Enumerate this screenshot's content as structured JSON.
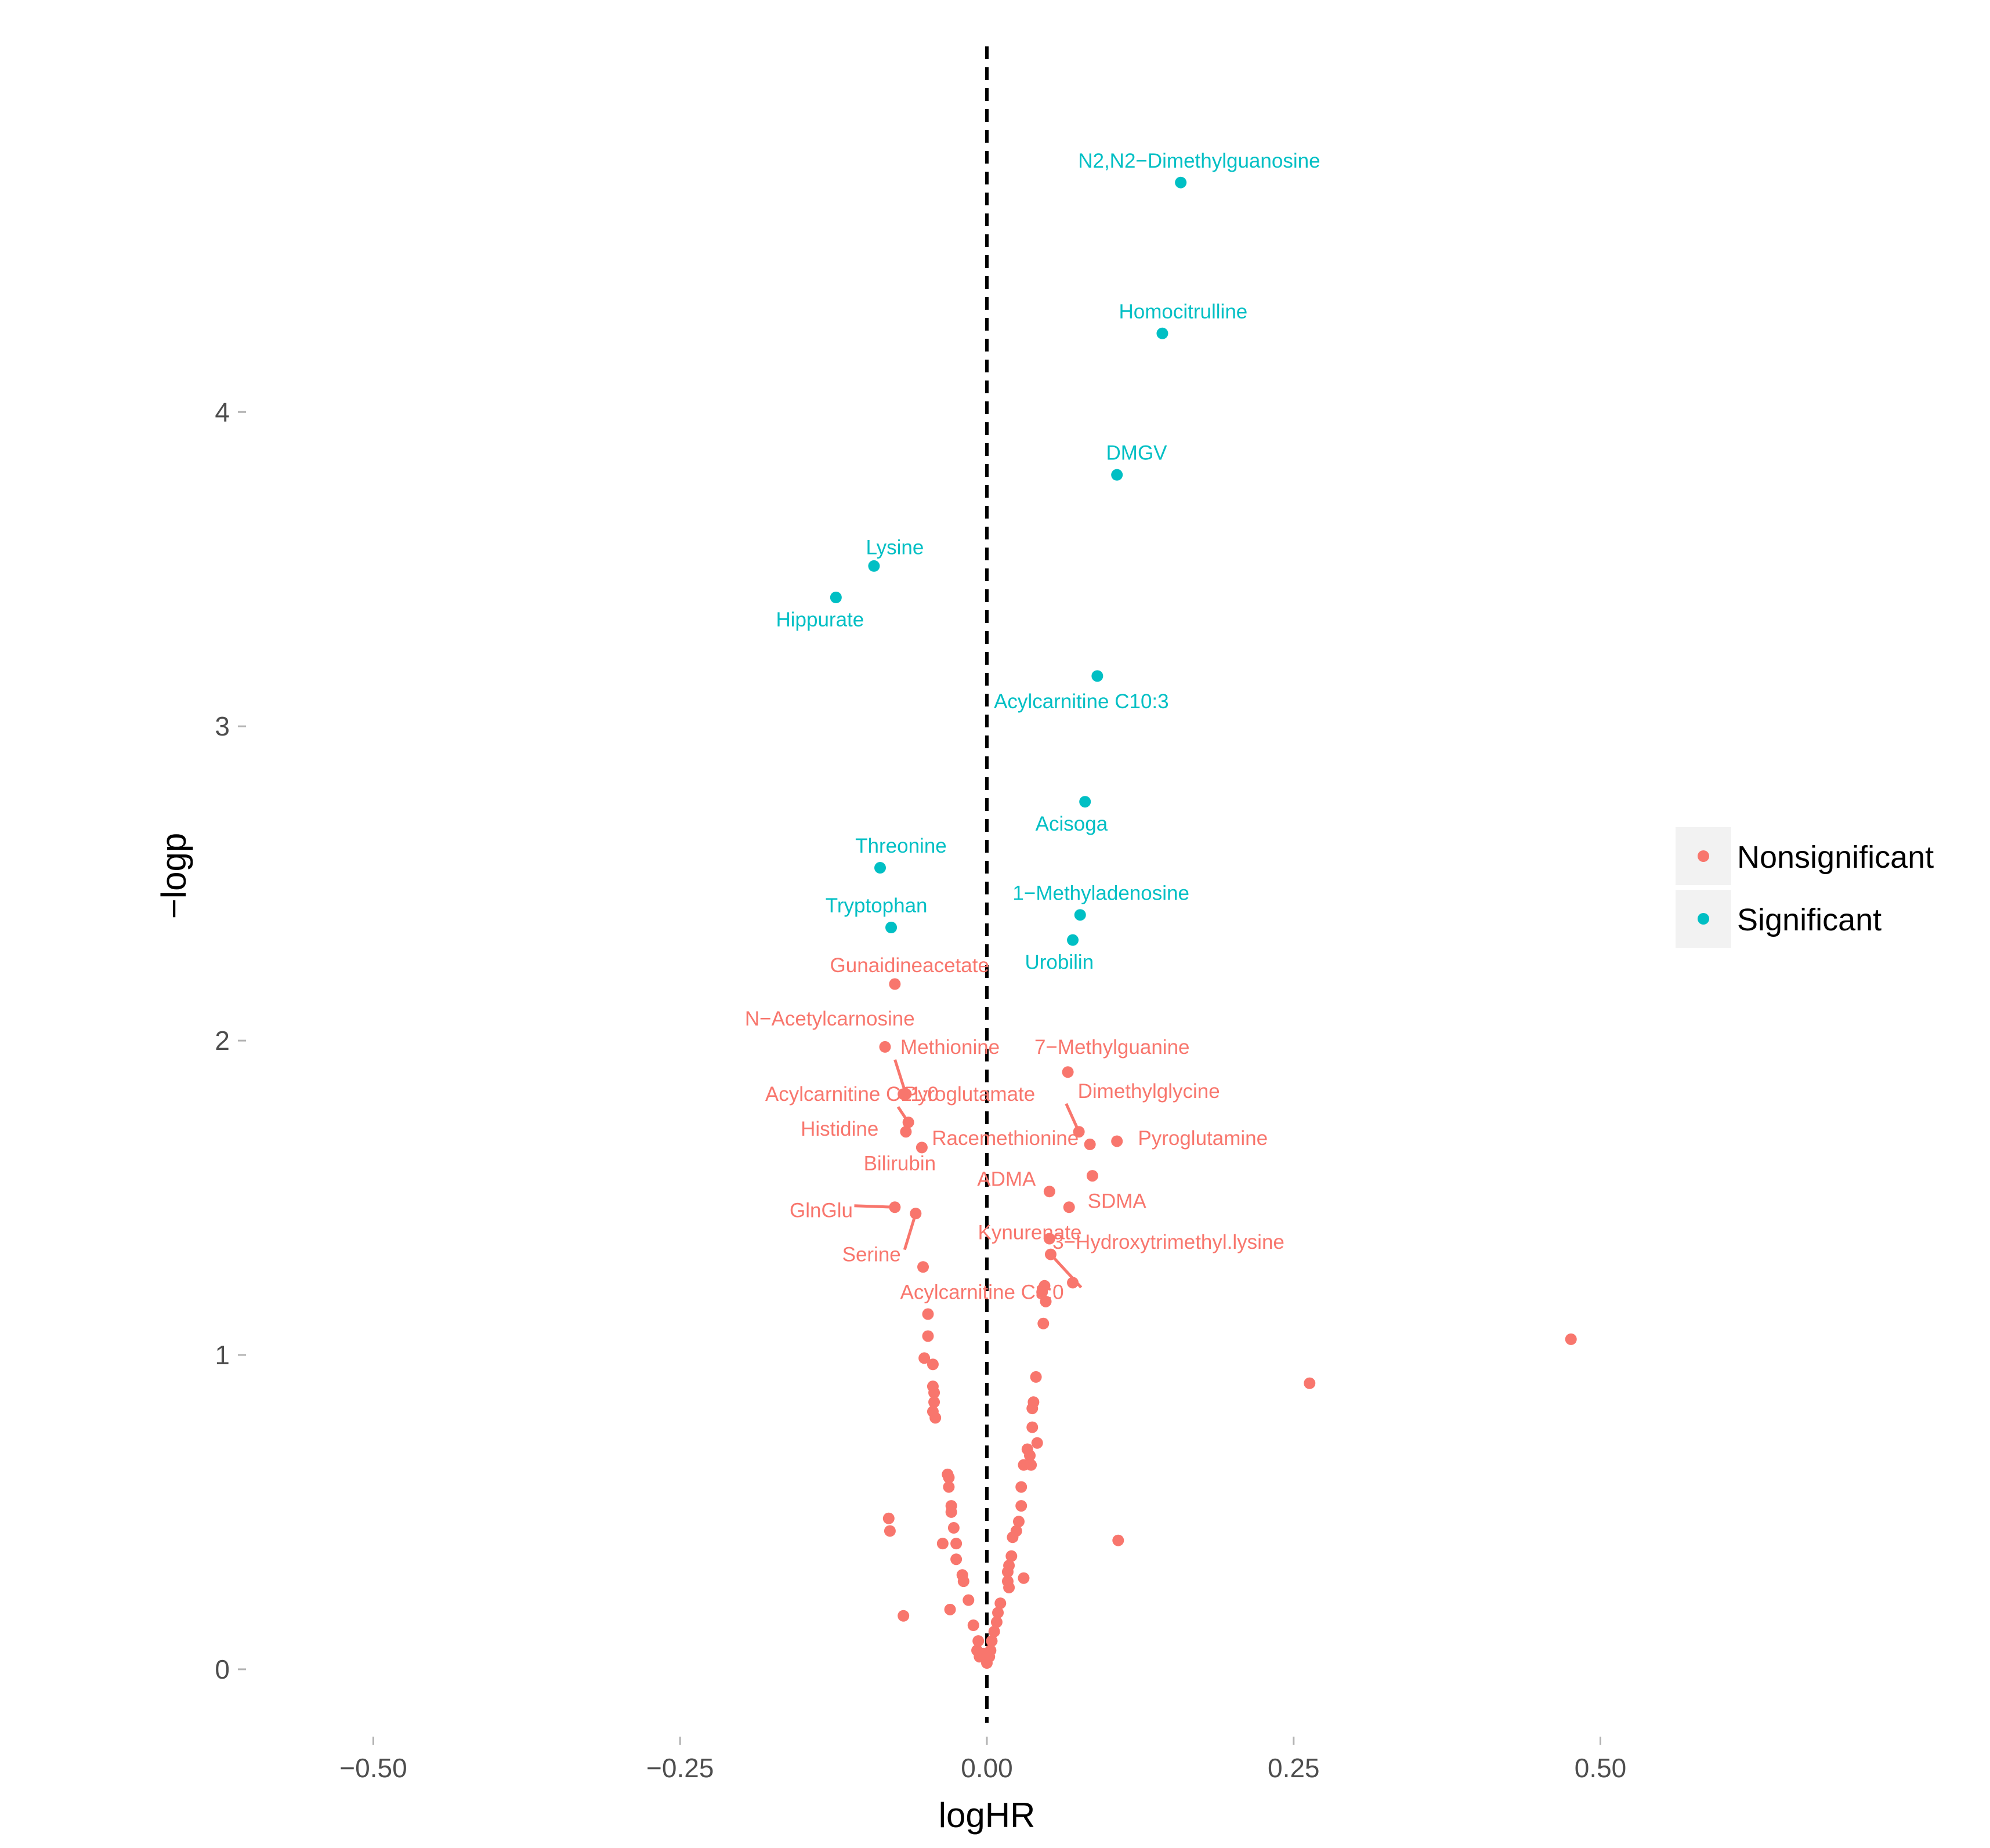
{
  "colors": {
    "nonsignificant": "#F8766D",
    "significant": "#00BFC4",
    "refline": "#000000",
    "legend_key_bg": "#F2F2F2"
  },
  "legend": {
    "items": [
      {
        "key": "nonsignificant",
        "label": "Nonsignificant"
      },
      {
        "key": "significant",
        "label": "Significant"
      }
    ]
  },
  "chart_data": {
    "type": "scatter",
    "title": "",
    "xlabel": "logHR",
    "ylabel": "−logp",
    "xlim": [
      -0.6,
      0.6
    ],
    "ylim": [
      -0.17,
      5.2
    ],
    "xticks": [
      -0.5,
      -0.25,
      0.0,
      0.25,
      0.5
    ],
    "xtick_labels": [
      "−0.50",
      "−0.25",
      "0.00",
      "0.25",
      "0.50"
    ],
    "yticks": [
      0,
      1,
      2,
      3,
      4
    ],
    "ytick_labels": [
      "0",
      "1",
      "2",
      "3",
      "4"
    ],
    "reference_line": {
      "x": 0,
      "style": "dashed"
    },
    "labeled_points": [
      {
        "label": "N2,N2−Dimethylguanosine",
        "x": 0.158,
        "y": 4.73,
        "group": "significant",
        "label_dx": 0.015,
        "label_dy": 0.07
      },
      {
        "label": "Homocitrulline",
        "x": 0.143,
        "y": 4.25,
        "group": "significant",
        "label_dx": 0.017,
        "label_dy": 0.07
      },
      {
        "label": "DMGV",
        "x": 0.106,
        "y": 3.8,
        "group": "significant",
        "label_dx": 0.016,
        "label_dy": 0.07
      },
      {
        "label": "Lysine",
        "x": -0.092,
        "y": 3.51,
        "group": "significant",
        "label_dx": 0.017,
        "label_dy": 0.06
      },
      {
        "label": "Hippurate",
        "x": -0.123,
        "y": 3.41,
        "group": "significant",
        "label_dx": -0.013,
        "label_dy": -0.07
      },
      {
        "label": "Acylcarnitine C10:3",
        "x": 0.09,
        "y": 3.16,
        "group": "significant",
        "label_dx": -0.013,
        "label_dy": -0.08
      },
      {
        "label": "Acisoga",
        "x": 0.08,
        "y": 2.76,
        "group": "significant",
        "label_dx": -0.011,
        "label_dy": -0.07
      },
      {
        "label": "Threonine",
        "x": -0.087,
        "y": 2.55,
        "group": "significant",
        "label_dx": 0.017,
        "label_dy": 0.07
      },
      {
        "label": "1−Methyladenosine",
        "x": 0.076,
        "y": 2.4,
        "group": "significant",
        "label_dx": 0.017,
        "label_dy": 0.07
      },
      {
        "label": "Tryptophan",
        "x": -0.078,
        "y": 2.36,
        "group": "significant",
        "label_dx": -0.012,
        "label_dy": 0.07
      },
      {
        "label": "Urobilin",
        "x": 0.07,
        "y": 2.32,
        "group": "significant",
        "label_dx": -0.011,
        "label_dy": -0.07
      },
      {
        "label": "Gunaidineacetate",
        "x": -0.075,
        "y": 2.18,
        "group": "nonsignificant",
        "label_dx": 0.012,
        "label_dy": 0.06
      },
      {
        "label": "N−Acetylcarnosine",
        "x": -0.083,
        "y": 1.98,
        "group": "nonsignificant",
        "label_dx": -0.045,
        "label_dy": 0.09
      },
      {
        "label": "7−Methylguanine",
        "x": 0.066,
        "y": 1.9,
        "group": "nonsignificant",
        "label_dx": 0.036,
        "label_dy": 0.08
      },
      {
        "label": "Methionine",
        "x": -0.066,
        "y": 1.83,
        "group": "nonsignificant",
        "label_dx": 0.036,
        "label_dy": 0.15,
        "leader": true
      },
      {
        "label": "Acylcarnitine C11:0",
        "x": -0.068,
        "y": 1.83,
        "group": "nonsignificant",
        "label_dx": -0.042,
        "label_dy": 0.0
      },
      {
        "label": "Pyroglutamate",
        "x": -0.064,
        "y": 1.74,
        "group": "nonsignificant",
        "label_dx": 0.05,
        "label_dy": 0.09,
        "leader": true
      },
      {
        "label": "Dimethylglycine",
        "x": 0.075,
        "y": 1.71,
        "group": "nonsignificant",
        "label_dx": 0.057,
        "label_dy": 0.13,
        "leader": true
      },
      {
        "label": "Histidine",
        "x": -0.066,
        "y": 1.71,
        "group": "nonsignificant",
        "label_dx": -0.054,
        "label_dy": 0.01
      },
      {
        "label": "Racemethionine",
        "x": -0.053,
        "y": 1.66,
        "group": "nonsignificant",
        "label_dx": 0.068,
        "label_dy": 0.03
      },
      {
        "label": "Pyroglutamine",
        "x": 0.106,
        "y": 1.68,
        "group": "nonsignificant",
        "label_dx": 0.07,
        "label_dy": 0.01
      },
      {
        "label": "Bilirubin",
        "x": 0.084,
        "y": 1.67,
        "group": "nonsignificant",
        "label_dx": -0.155,
        "label_dy": -0.06
      },
      {
        "label": "ADMA",
        "x": 0.086,
        "y": 1.57,
        "group": "nonsignificant",
        "label_dx": -0.07,
        "label_dy": -0.01
      },
      {
        "label": "SDMA",
        "x": 0.051,
        "y": 1.52,
        "group": "nonsignificant",
        "label_dx": 0.055,
        "label_dy": -0.03
      },
      {
        "label": "GlnGlu",
        "x": -0.075,
        "y": 1.47,
        "group": "nonsignificant",
        "label_dx": -0.06,
        "label_dy": -0.01,
        "leader": true
      },
      {
        "label": "Kynurenate",
        "x": 0.067,
        "y": 1.47,
        "group": "nonsignificant",
        "label_dx": -0.032,
        "label_dy": -0.08
      },
      {
        "label": "Serine",
        "x": -0.058,
        "y": 1.45,
        "group": "nonsignificant",
        "label_dx": -0.036,
        "label_dy": -0.13,
        "leader": true
      },
      {
        "label": "3−Hydroxytrimethyl.lysine",
        "x": 0.051,
        "y": 1.37,
        "group": "nonsignificant",
        "label_dx": 0.097,
        "label_dy": -0.01
      },
      {
        "label": "Acylcarnitine C8:0",
        "x": 0.052,
        "y": 1.32,
        "group": "nonsignificant",
        "label_dx": -0.056,
        "label_dy": -0.12,
        "leader": true
      }
    ],
    "unlabeled_points": [
      [
        0.476,
        1.05
      ],
      [
        0.263,
        0.91
      ],
      [
        0.107,
        0.41
      ],
      [
        -0.052,
        1.28
      ],
      [
        0.07,
        1.23
      ],
      [
        0.047,
        1.22
      ],
      [
        0.045,
        1.2
      ],
      [
        0.048,
        1.17
      ],
      [
        0.046,
        1.1
      ],
      [
        -0.048,
        1.13
      ],
      [
        -0.048,
        1.06
      ],
      [
        -0.051,
        0.99
      ],
      [
        -0.044,
        0.97
      ],
      [
        -0.044,
        0.9
      ],
      [
        -0.043,
        0.88
      ],
      [
        -0.043,
        0.85
      ],
      [
        -0.044,
        0.82
      ],
      [
        -0.042,
        0.8
      ],
      [
        0.04,
        0.93
      ],
      [
        0.038,
        0.85
      ],
      [
        0.037,
        0.83
      ],
      [
        0.037,
        0.77
      ],
      [
        0.041,
        0.72
      ],
      [
        0.033,
        0.7
      ],
      [
        0.035,
        0.68
      ],
      [
        0.03,
        0.65
      ],
      [
        0.036,
        0.65
      ],
      [
        0.028,
        0.58
      ],
      [
        0.028,
        0.52
      ],
      [
        0.026,
        0.47
      ],
      [
        0.024,
        0.44
      ],
      [
        0.021,
        0.42
      ],
      [
        0.02,
        0.36
      ],
      [
        0.018,
        0.33
      ],
      [
        0.017,
        0.31
      ],
      [
        0.018,
        0.26
      ],
      [
        0.017,
        0.28
      ],
      [
        0.011,
        0.21
      ],
      [
        0.009,
        0.18
      ],
      [
        0.008,
        0.15
      ],
      [
        0.006,
        0.12
      ],
      [
        0.004,
        0.09
      ],
      [
        0.003,
        0.06
      ],
      [
        0.002,
        0.04
      ],
      [
        0.0,
        0.02
      ],
      [
        -0.003,
        0.05
      ],
      [
        -0.006,
        0.04
      ],
      [
        -0.008,
        0.06
      ],
      [
        -0.007,
        0.09
      ],
      [
        0.03,
        0.29
      ],
      [
        -0.032,
        0.62
      ],
      [
        -0.031,
        0.61
      ],
      [
        -0.031,
        0.58
      ],
      [
        -0.029,
        0.52
      ],
      [
        -0.029,
        0.5
      ],
      [
        -0.027,
        0.45
      ],
      [
        -0.025,
        0.4
      ],
      [
        -0.036,
        0.4
      ],
      [
        -0.025,
        0.35
      ],
      [
        -0.02,
        0.3
      ],
      [
        -0.019,
        0.28
      ],
      [
        -0.015,
        0.22
      ],
      [
        -0.03,
        0.19
      ],
      [
        -0.011,
        0.14
      ],
      [
        -0.068,
        0.17
      ],
      [
        -0.08,
        0.48
      ],
      [
        -0.079,
        0.44
      ]
    ]
  }
}
